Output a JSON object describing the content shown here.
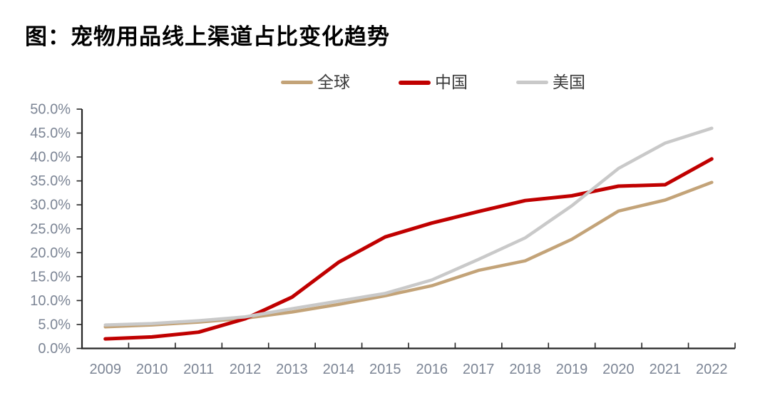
{
  "chart_data": {
    "type": "line",
    "title": "图：宠物用品线上渠道占比变化趋势",
    "xlabel": "",
    "ylabel": "",
    "categories": [
      "2009",
      "2010",
      "2011",
      "2012",
      "2013",
      "2014",
      "2015",
      "2016",
      "2017",
      "2018",
      "2019",
      "2020",
      "2021",
      "2022"
    ],
    "series": [
      {
        "name": "全球",
        "color": "#C3A378",
        "values": [
          4.5,
          4.9,
          5.5,
          6.3,
          7.6,
          9.2,
          11.0,
          13.1,
          16.3,
          18.3,
          22.8,
          28.7,
          31.0,
          34.7
        ]
      },
      {
        "name": "中国",
        "color": "#C00000",
        "values": [
          2.0,
          2.4,
          3.4,
          6.2,
          10.7,
          18.0,
          23.3,
          26.2,
          28.6,
          30.9,
          31.9,
          33.9,
          34.2,
          39.6
        ]
      },
      {
        "name": "美国",
        "color": "#C9C9C9",
        "values": [
          4.9,
          5.2,
          5.8,
          6.6,
          8.3,
          9.9,
          11.5,
          14.3,
          18.6,
          23.1,
          29.8,
          37.6,
          42.9,
          46.0
        ]
      }
    ],
    "ylim": [
      0,
      50
    ],
    "ytick_step": 5,
    "ytick_suffix": "%",
    "ytick_decimals": 1,
    "grid": false,
    "legend_position": "top",
    "colors": {
      "axis": "#262626",
      "tick_label": "#7C8595",
      "title": "#000000"
    }
  }
}
